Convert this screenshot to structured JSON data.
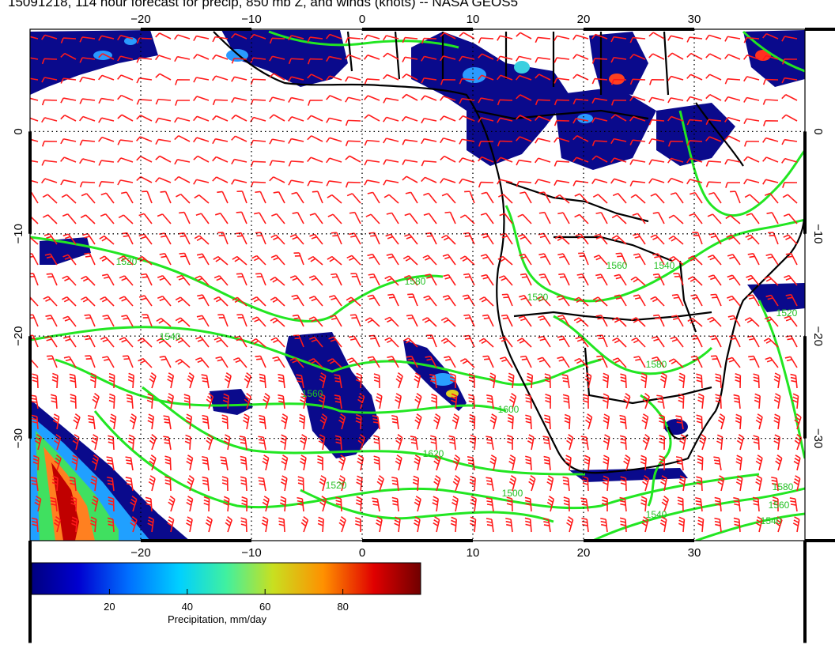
{
  "title": "15091218, 114 hour forecast for precip, 850 mb Z, and winds (knots) -- NASA GEOS5",
  "map": {
    "lon_range": [
      -30,
      40
    ],
    "lat_range": [
      -40,
      10
    ],
    "lon_ticks": [
      "-20",
      "-10",
      "0",
      "10",
      "20",
      "30"
    ],
    "lat_ticks": [
      "0",
      "-10",
      "-20",
      "-30"
    ],
    "contour_labels": [
      "1520",
      "1540",
      "1560",
      "1580",
      "1600",
      "1620",
      "1520",
      "1500",
      "1540",
      "1580",
      "1560",
      "1540",
      "1520",
      "1580",
      "1560",
      "1540",
      "1520"
    ],
    "colors": {
      "precip_low": "#0a0a8c",
      "contour": "#22e622",
      "wind_barb": "#ff1a1a",
      "coast": "#000000"
    }
  },
  "colorbar": {
    "label": "Precipitation, mm/day",
    "ticks": [
      "20",
      "40",
      "60",
      "80"
    ],
    "tick_values": [
      20,
      40,
      60,
      80
    ],
    "range": [
      0,
      100
    ]
  }
}
